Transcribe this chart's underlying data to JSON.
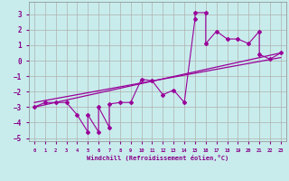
{
  "xlabel": "Windchill (Refroidissement éolien,°C)",
  "background_color": "#c8ecec",
  "grid_color": "#b0b0b0",
  "line_color": "#990099",
  "xlim": [
    -0.5,
    23.5
  ],
  "ylim": [
    -5.2,
    3.8
  ],
  "xticks": [
    0,
    1,
    2,
    3,
    4,
    5,
    6,
    7,
    8,
    9,
    10,
    11,
    12,
    13,
    14,
    15,
    16,
    17,
    18,
    19,
    20,
    21,
    22,
    23
  ],
  "yticks": [
    -5,
    -4,
    -3,
    -2,
    -1,
    0,
    1,
    2,
    3
  ],
  "scatter_x": [
    0,
    1,
    2,
    3,
    4,
    5,
    5,
    6,
    6,
    7,
    7,
    8,
    9,
    10,
    11,
    12,
    13,
    14,
    15,
    15,
    16,
    16,
    17,
    18,
    19,
    20,
    21,
    21,
    22,
    23
  ],
  "scatter_y": [
    -3.0,
    -2.7,
    -2.7,
    -2.7,
    -3.5,
    -4.6,
    -3.5,
    -4.6,
    -3.0,
    -4.3,
    -2.8,
    -2.7,
    -2.7,
    -1.2,
    -1.3,
    -2.2,
    -1.9,
    -2.7,
    2.7,
    3.1,
    3.1,
    1.1,
    1.9,
    1.4,
    1.4,
    1.1,
    1.9,
    0.4,
    0.1,
    0.5
  ],
  "line1_x": [
    0,
    23
  ],
  "line1_y": [
    -3.0,
    0.5
  ],
  "line2_x": [
    0,
    23
  ],
  "line2_y": [
    -2.7,
    0.2
  ]
}
